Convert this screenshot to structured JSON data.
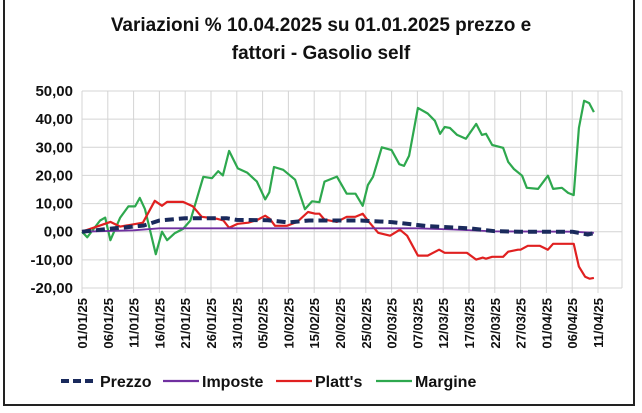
{
  "chart_data": {
    "type": "line",
    "title_line1": "Variazioni % 10.04.2025 su 01.01.2025 prezzo e",
    "title_line2": "fattori - Gasolio self",
    "xlabel": "",
    "ylabel": "",
    "ylim": [
      -20,
      50
    ],
    "y_ticks": [
      {
        "value": 50,
        "label": "50,00"
      },
      {
        "value": 40,
        "label": "40,00"
      },
      {
        "value": 30,
        "label": "30,00"
      },
      {
        "value": 20,
        "label": "20,00"
      },
      {
        "value": 10,
        "label": "10,00"
      },
      {
        "value": 0,
        "label": "0,00"
      },
      {
        "value": -10,
        "label": "-10,00"
      },
      {
        "value": -20,
        "label": "-20,00"
      }
    ],
    "negative_label_color": "#d02020",
    "x_unit": "days since 01/01/25",
    "xlim": [
      0,
      104
    ],
    "x_ticks": [
      {
        "day": 0,
        "label": "01/01/25"
      },
      {
        "day": 5,
        "label": "06/01/25"
      },
      {
        "day": 10,
        "label": "11/01/25"
      },
      {
        "day": 15,
        "label": "16/01/25"
      },
      {
        "day": 20,
        "label": "21/01/25"
      },
      {
        "day": 25,
        "label": "26/01/25"
      },
      {
        "day": 30,
        "label": "31/01/25"
      },
      {
        "day": 35,
        "label": "05/02/25"
      },
      {
        "day": 40,
        "label": "10/02/25"
      },
      {
        "day": 45,
        "label": "15/02/25"
      },
      {
        "day": 50,
        "label": "20/02/25"
      },
      {
        "day": 55,
        "label": "25/02/25"
      },
      {
        "day": 60,
        "label": "02/03/25"
      },
      {
        "day": 65,
        "label": "07/03/25"
      },
      {
        "day": 70,
        "label": "12/03/25"
      },
      {
        "day": 75,
        "label": "17/03/25"
      },
      {
        "day": 80,
        "label": "22/03/25"
      },
      {
        "day": 85,
        "label": "27/03/25"
      },
      {
        "day": 90,
        "label": "01/04/25"
      },
      {
        "day": 95,
        "label": "06/04/25"
      },
      {
        "day": 100,
        "label": "11/04/25"
      }
    ],
    "grid": true,
    "legend_position": "bottom",
    "series": [
      {
        "name": "Prezzo",
        "color": "#1a2a5c",
        "dashed": true,
        "points": [
          [
            0,
            0
          ],
          [
            5,
            1
          ],
          [
            10,
            1.8
          ],
          [
            12,
            2.2
          ],
          [
            15,
            4
          ],
          [
            20,
            4.8
          ],
          [
            28,
            4.8
          ],
          [
            30,
            4.2
          ],
          [
            36,
            4.1
          ],
          [
            40,
            3.3
          ],
          [
            44,
            4
          ],
          [
            54,
            4
          ],
          [
            60,
            3.4
          ],
          [
            64,
            2.6
          ],
          [
            67,
            2
          ],
          [
            72,
            1.5
          ],
          [
            75,
            1.2
          ],
          [
            80,
            0.2
          ],
          [
            85,
            0
          ],
          [
            95,
            0
          ],
          [
            98,
            -1
          ],
          [
            99.2,
            -0.5
          ]
        ]
      },
      {
        "name": "Imposte",
        "color": "#7030a0",
        "dashed": false,
        "points": [
          [
            0,
            0
          ],
          [
            10,
            0.5
          ],
          [
            15,
            1.2
          ],
          [
            65,
            1.2
          ],
          [
            72,
            0.8
          ],
          [
            80,
            0.1
          ],
          [
            95,
            0
          ],
          [
            99.2,
            -0.4
          ]
        ]
      },
      {
        "name": "Platt's",
        "color": "#e02020",
        "dashed": false,
        "points": [
          [
            0,
            0
          ],
          [
            5.5,
            3.5
          ],
          [
            7.4,
            1.8
          ],
          [
            11.8,
            3.2
          ],
          [
            14.1,
            11
          ],
          [
            15.5,
            9.2
          ],
          [
            16.5,
            10.6
          ],
          [
            19.6,
            10.6
          ],
          [
            21.5,
            9
          ],
          [
            23.2,
            5.3
          ],
          [
            26.2,
            4.6
          ],
          [
            27.4,
            4
          ],
          [
            28.5,
            1.4
          ],
          [
            30.2,
            2.8
          ],
          [
            32.2,
            3.2
          ],
          [
            34.1,
            4.3
          ],
          [
            35.5,
            5.7
          ],
          [
            36.4,
            4.6
          ],
          [
            37.4,
            2.1
          ],
          [
            39.7,
            2.1
          ],
          [
            41.7,
            3.5
          ],
          [
            43.8,
            7
          ],
          [
            45.2,
            6.4
          ],
          [
            46,
            6.4
          ],
          [
            47,
            4.3
          ],
          [
            49.4,
            3.5
          ],
          [
            51.3,
            5.3
          ],
          [
            53,
            5.3
          ],
          [
            54.4,
            6.4
          ],
          [
            55.4,
            3.9
          ],
          [
            57.4,
            -0.4
          ],
          [
            59.7,
            -1.4
          ],
          [
            61.6,
            0.7
          ],
          [
            63,
            -1.4
          ],
          [
            65.1,
            -8.5
          ],
          [
            67,
            -8.5
          ],
          [
            69.2,
            -6.4
          ],
          [
            70.3,
            -7.5
          ],
          [
            74.6,
            -7.5
          ],
          [
            76.4,
            -9.9
          ],
          [
            77.7,
            -9.2
          ],
          [
            78.3,
            -9.6
          ],
          [
            79.5,
            -8.9
          ],
          [
            81.6,
            -8.9
          ],
          [
            82.6,
            -7.1
          ],
          [
            84.5,
            -6.4
          ],
          [
            85,
            -6.4
          ],
          [
            86.4,
            -5
          ],
          [
            88.7,
            -5
          ],
          [
            90.3,
            -6.4
          ],
          [
            91.3,
            -4.3
          ],
          [
            95.3,
            -4.3
          ],
          [
            96.3,
            -12.4
          ],
          [
            97.5,
            -16
          ],
          [
            98.4,
            -16.7
          ],
          [
            99.2,
            -16.4
          ]
        ]
      },
      {
        "name": "Margine",
        "color": "#2ea84e",
        "dashed": false,
        "points": [
          [
            0,
            0
          ],
          [
            1,
            -2
          ],
          [
            3.5,
            4
          ],
          [
            4.5,
            5
          ],
          [
            5.5,
            -3
          ],
          [
            7.4,
            5
          ],
          [
            9,
            9
          ],
          [
            10.3,
            9
          ],
          [
            11.2,
            12
          ],
          [
            12.2,
            8
          ],
          [
            14.3,
            -8
          ],
          [
            15.5,
            0
          ],
          [
            16.5,
            -3
          ],
          [
            18,
            -0.5
          ],
          [
            19.6,
            1
          ],
          [
            21,
            4
          ],
          [
            23.5,
            19.5
          ],
          [
            25.2,
            19
          ],
          [
            26.4,
            21.5
          ],
          [
            27.3,
            20
          ],
          [
            28.5,
            28.7
          ],
          [
            30.2,
            22.5
          ],
          [
            32,
            21
          ],
          [
            33.9,
            17.8
          ],
          [
            35.5,
            11.5
          ],
          [
            36.3,
            14
          ],
          [
            37.2,
            23
          ],
          [
            39,
            22
          ],
          [
            41.3,
            18.5
          ],
          [
            43.2,
            8
          ],
          [
            44.6,
            10.8
          ],
          [
            46,
            10.5
          ],
          [
            47,
            17.8
          ],
          [
            49.4,
            19.6
          ],
          [
            51.3,
            13.5
          ],
          [
            53,
            13.5
          ],
          [
            54.4,
            9.2
          ],
          [
            55.4,
            16.6
          ],
          [
            56.4,
            19.5
          ],
          [
            58.1,
            30
          ],
          [
            60,
            29
          ],
          [
            61.5,
            24
          ],
          [
            62.4,
            23.4
          ],
          [
            63.4,
            27
          ],
          [
            65.1,
            44
          ],
          [
            67,
            42
          ],
          [
            68.4,
            39.4
          ],
          [
            69.4,
            34.8
          ],
          [
            70.3,
            37.2
          ],
          [
            71.3,
            36.9
          ],
          [
            72.7,
            34.4
          ],
          [
            74.4,
            33
          ],
          [
            76.4,
            38.3
          ],
          [
            77.5,
            34.4
          ],
          [
            78.3,
            34.8
          ],
          [
            79.5,
            30.8
          ],
          [
            81.6,
            29.8
          ],
          [
            82.6,
            24.8
          ],
          [
            83.7,
            22.3
          ],
          [
            85.3,
            19.9
          ],
          [
            86.2,
            15.6
          ],
          [
            88.4,
            15.2
          ],
          [
            90.3,
            19.9
          ],
          [
            91.3,
            15.2
          ],
          [
            93,
            15.6
          ],
          [
            94.2,
            13.8
          ],
          [
            95.3,
            13
          ],
          [
            96.3,
            36.9
          ],
          [
            97.3,
            46.5
          ],
          [
            98.3,
            45.7
          ],
          [
            99.2,
            42.5
          ]
        ]
      }
    ]
  }
}
